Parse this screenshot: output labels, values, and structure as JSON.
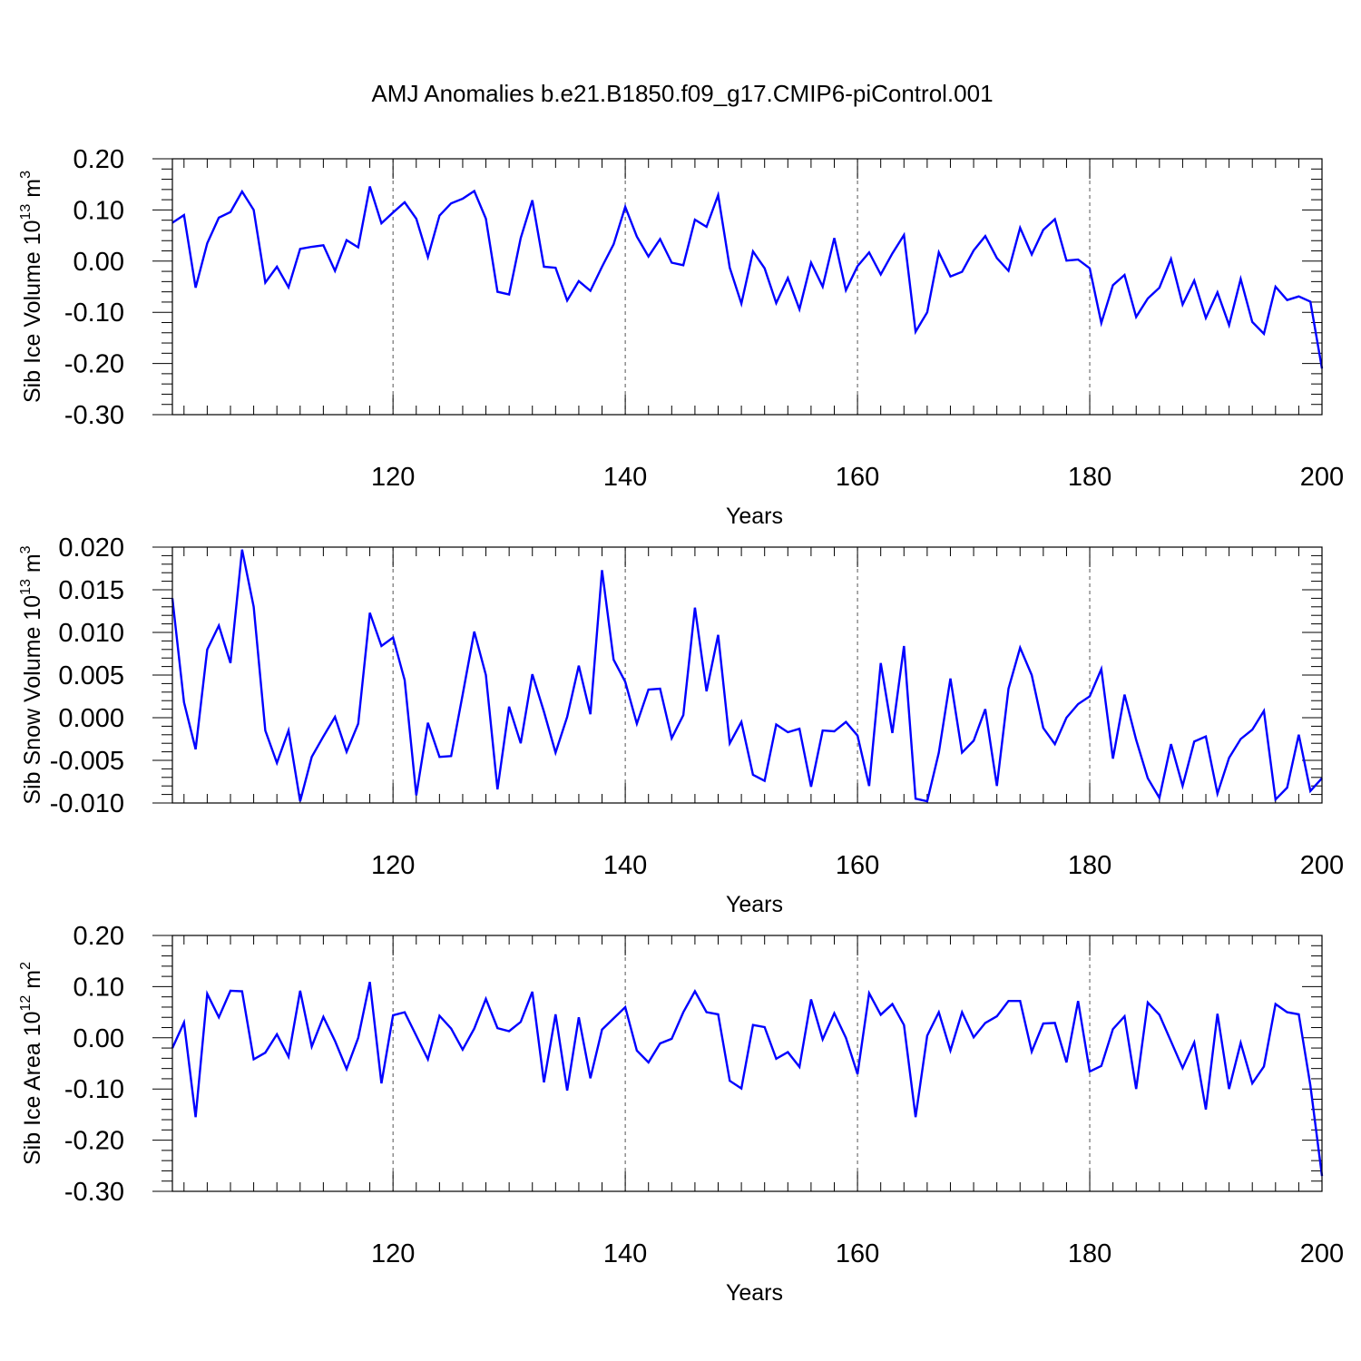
{
  "title": "AMJ Anomalies b.e21.B1850.f09_g17.CMIP6-piControl.001",
  "line_color": "#0000ff",
  "chart_data": [
    {
      "type": "line",
      "ylabel_main": "Sib Ice Volume 10",
      "ylabel_exp": "13",
      "ylabel_unit": " m",
      "ylabel_unit_exp": "3",
      "xlabel": "Years",
      "xlim": [
        101,
        200
      ],
      "ylim": [
        -0.3,
        0.2
      ],
      "xticks": [
        120,
        140,
        160,
        180,
        200
      ],
      "xtick_labels": [
        "120",
        "140",
        "160",
        "180",
        "200"
      ],
      "yticks": [
        0.2,
        0.1,
        0.0,
        -0.1,
        -0.2,
        -0.3
      ],
      "ytick_labels": [
        "0.20",
        "0.10",
        "0.00",
        "-0.10",
        "-0.20",
        "-0.30"
      ],
      "x_start": 101,
      "values": [
        0.075,
        0.09,
        -0.052,
        0.035,
        0.085,
        0.096,
        0.136,
        0.1,
        -0.042,
        -0.011,
        -0.051,
        0.024,
        0.028,
        0.031,
        -0.019,
        0.041,
        0.027,
        0.146,
        0.074,
        0.095,
        0.115,
        0.083,
        0.008,
        0.089,
        0.113,
        0.122,
        0.137,
        0.083,
        -0.06,
        -0.065,
        0.045,
        0.119,
        -0.011,
        -0.013,
        -0.077,
        -0.039,
        -0.058,
        -0.011,
        0.033,
        0.106,
        0.048,
        0.009,
        0.043,
        -0.003,
        -0.008,
        0.081,
        0.067,
        0.129,
        -0.013,
        -0.083,
        0.019,
        -0.014,
        -0.082,
        -0.033,
        -0.094,
        -0.003,
        -0.05,
        0.045,
        -0.057,
        -0.01,
        0.017,
        -0.026,
        0.015,
        0.051,
        -0.138,
        -0.1,
        0.017,
        -0.03,
        -0.021,
        0.021,
        0.049,
        0.006,
        -0.019,
        0.065,
        0.013,
        0.061,
        0.082,
        0.001,
        0.003,
        -0.014,
        -0.121,
        -0.047,
        -0.027,
        -0.109,
        -0.073,
        -0.052,
        0.004,
        -0.085,
        -0.038,
        -0.111,
        -0.061,
        -0.125,
        -0.035,
        -0.119,
        -0.142,
        -0.05,
        -0.076,
        -0.069,
        -0.079,
        -0.21
      ]
    },
    {
      "type": "line",
      "ylabel_main": "Sib Snow Volume 10",
      "ylabel_exp": "13",
      "ylabel_unit": " m",
      "ylabel_unit_exp": "3",
      "xlabel": "Years",
      "xlim": [
        101,
        200
      ],
      "ylim": [
        -0.01,
        0.02
      ],
      "xticks": [
        120,
        140,
        160,
        180,
        200
      ],
      "xtick_labels": [
        "120",
        "140",
        "160",
        "180",
        "200"
      ],
      "yticks": [
        0.02,
        0.015,
        0.01,
        0.005,
        0.0,
        -0.005,
        -0.01
      ],
      "ytick_labels": [
        "0.020",
        "0.015",
        "0.010",
        "0.005",
        "0.000",
        "-0.005",
        "-0.010"
      ],
      "x_start": 101,
      "values": [
        0.014,
        0.0018,
        -0.0037,
        0.008,
        0.0108,
        0.0064,
        0.0197,
        0.013,
        -0.0015,
        -0.0053,
        -0.0015,
        -0.0098,
        -0.0046,
        -0.0022,
        0.0001,
        -0.004,
        -0.0007,
        0.0123,
        0.0084,
        0.0094,
        0.0044,
        -0.0091,
        -0.0006,
        -0.0046,
        -0.0045,
        0.0027,
        0.0101,
        0.005,
        -0.0084,
        0.0013,
        -0.003,
        0.0051,
        0.0007,
        -0.0041,
        0.0001,
        0.0061,
        0.0004,
        0.0173,
        0.0068,
        0.0042,
        -0.0007,
        0.0033,
        0.0034,
        -0.0024,
        0.0003,
        0.0129,
        0.0031,
        0.0097,
        -0.003,
        -0.0005,
        -0.0067,
        -0.0074,
        -0.0008,
        -0.0017,
        -0.0013,
        -0.0081,
        -0.0015,
        -0.0016,
        -0.0005,
        -0.0021,
        -0.008,
        0.0064,
        -0.0018,
        0.0084,
        -0.0095,
        -0.0098,
        -0.0041,
        0.0046,
        -0.0041,
        -0.0027,
        0.001,
        -0.008,
        0.0034,
        0.0082,
        0.005,
        -0.0012,
        -0.0031,
        0.0,
        0.0016,
        0.0025,
        0.0057,
        -0.0048,
        0.0027,
        -0.0026,
        -0.0071,
        -0.0094,
        -0.0031,
        -0.008,
        -0.0028,
        -0.0022,
        -0.0089,
        -0.0047,
        -0.0025,
        -0.0014,
        0.0008,
        -0.0096,
        -0.0082,
        -0.002,
        -0.0086,
        -0.0071
      ]
    },
    {
      "type": "line",
      "ylabel_main": "Sib Ice Area 10",
      "ylabel_exp": "12",
      "ylabel_unit": " m",
      "ylabel_unit_exp": "2",
      "xlabel": "Years",
      "xlim": [
        101,
        200
      ],
      "ylim": [
        -0.3,
        0.2
      ],
      "xticks": [
        120,
        140,
        160,
        180,
        200
      ],
      "xtick_labels": [
        "120",
        "140",
        "160",
        "180",
        "200"
      ],
      "yticks": [
        0.2,
        0.1,
        0.0,
        -0.1,
        -0.2,
        -0.3
      ],
      "ytick_labels": [
        "0.20",
        "0.10",
        "0.00",
        "-0.10",
        "-0.20",
        "-0.30"
      ],
      "x_start": 101,
      "values": [
        -0.02,
        0.03,
        -0.155,
        0.086,
        0.04,
        0.092,
        0.091,
        -0.042,
        -0.029,
        0.007,
        -0.037,
        0.092,
        -0.017,
        0.041,
        -0.006,
        -0.061,
        0.0,
        0.109,
        -0.089,
        0.044,
        0.05,
        0.004,
        -0.042,
        0.043,
        0.018,
        -0.023,
        0.018,
        0.076,
        0.019,
        0.013,
        0.031,
        0.09,
        -0.087,
        0.046,
        -0.103,
        0.04,
        -0.079,
        0.016,
        0.038,
        0.06,
        -0.025,
        -0.048,
        -0.011,
        -0.002,
        0.05,
        0.091,
        0.05,
        0.046,
        -0.084,
        -0.099,
        0.025,
        0.021,
        -0.041,
        -0.028,
        -0.057,
        0.075,
        -0.003,
        0.048,
        0.0,
        -0.071,
        0.087,
        0.045,
        0.066,
        0.025,
        -0.155,
        0.004,
        0.05,
        -0.025,
        0.05,
        0.001,
        0.029,
        0.042,
        0.072,
        0.072,
        -0.027,
        0.028,
        0.029,
        -0.048,
        0.072,
        -0.066,
        -0.055,
        0.017,
        0.042,
        -0.1,
        0.069,
        0.045,
        -0.007,
        -0.059,
        -0.009,
        -0.14,
        0.047,
        -0.1,
        -0.01,
        -0.089,
        -0.056,
        0.066,
        0.05,
        0.046,
        -0.093,
        -0.27
      ]
    }
  ]
}
